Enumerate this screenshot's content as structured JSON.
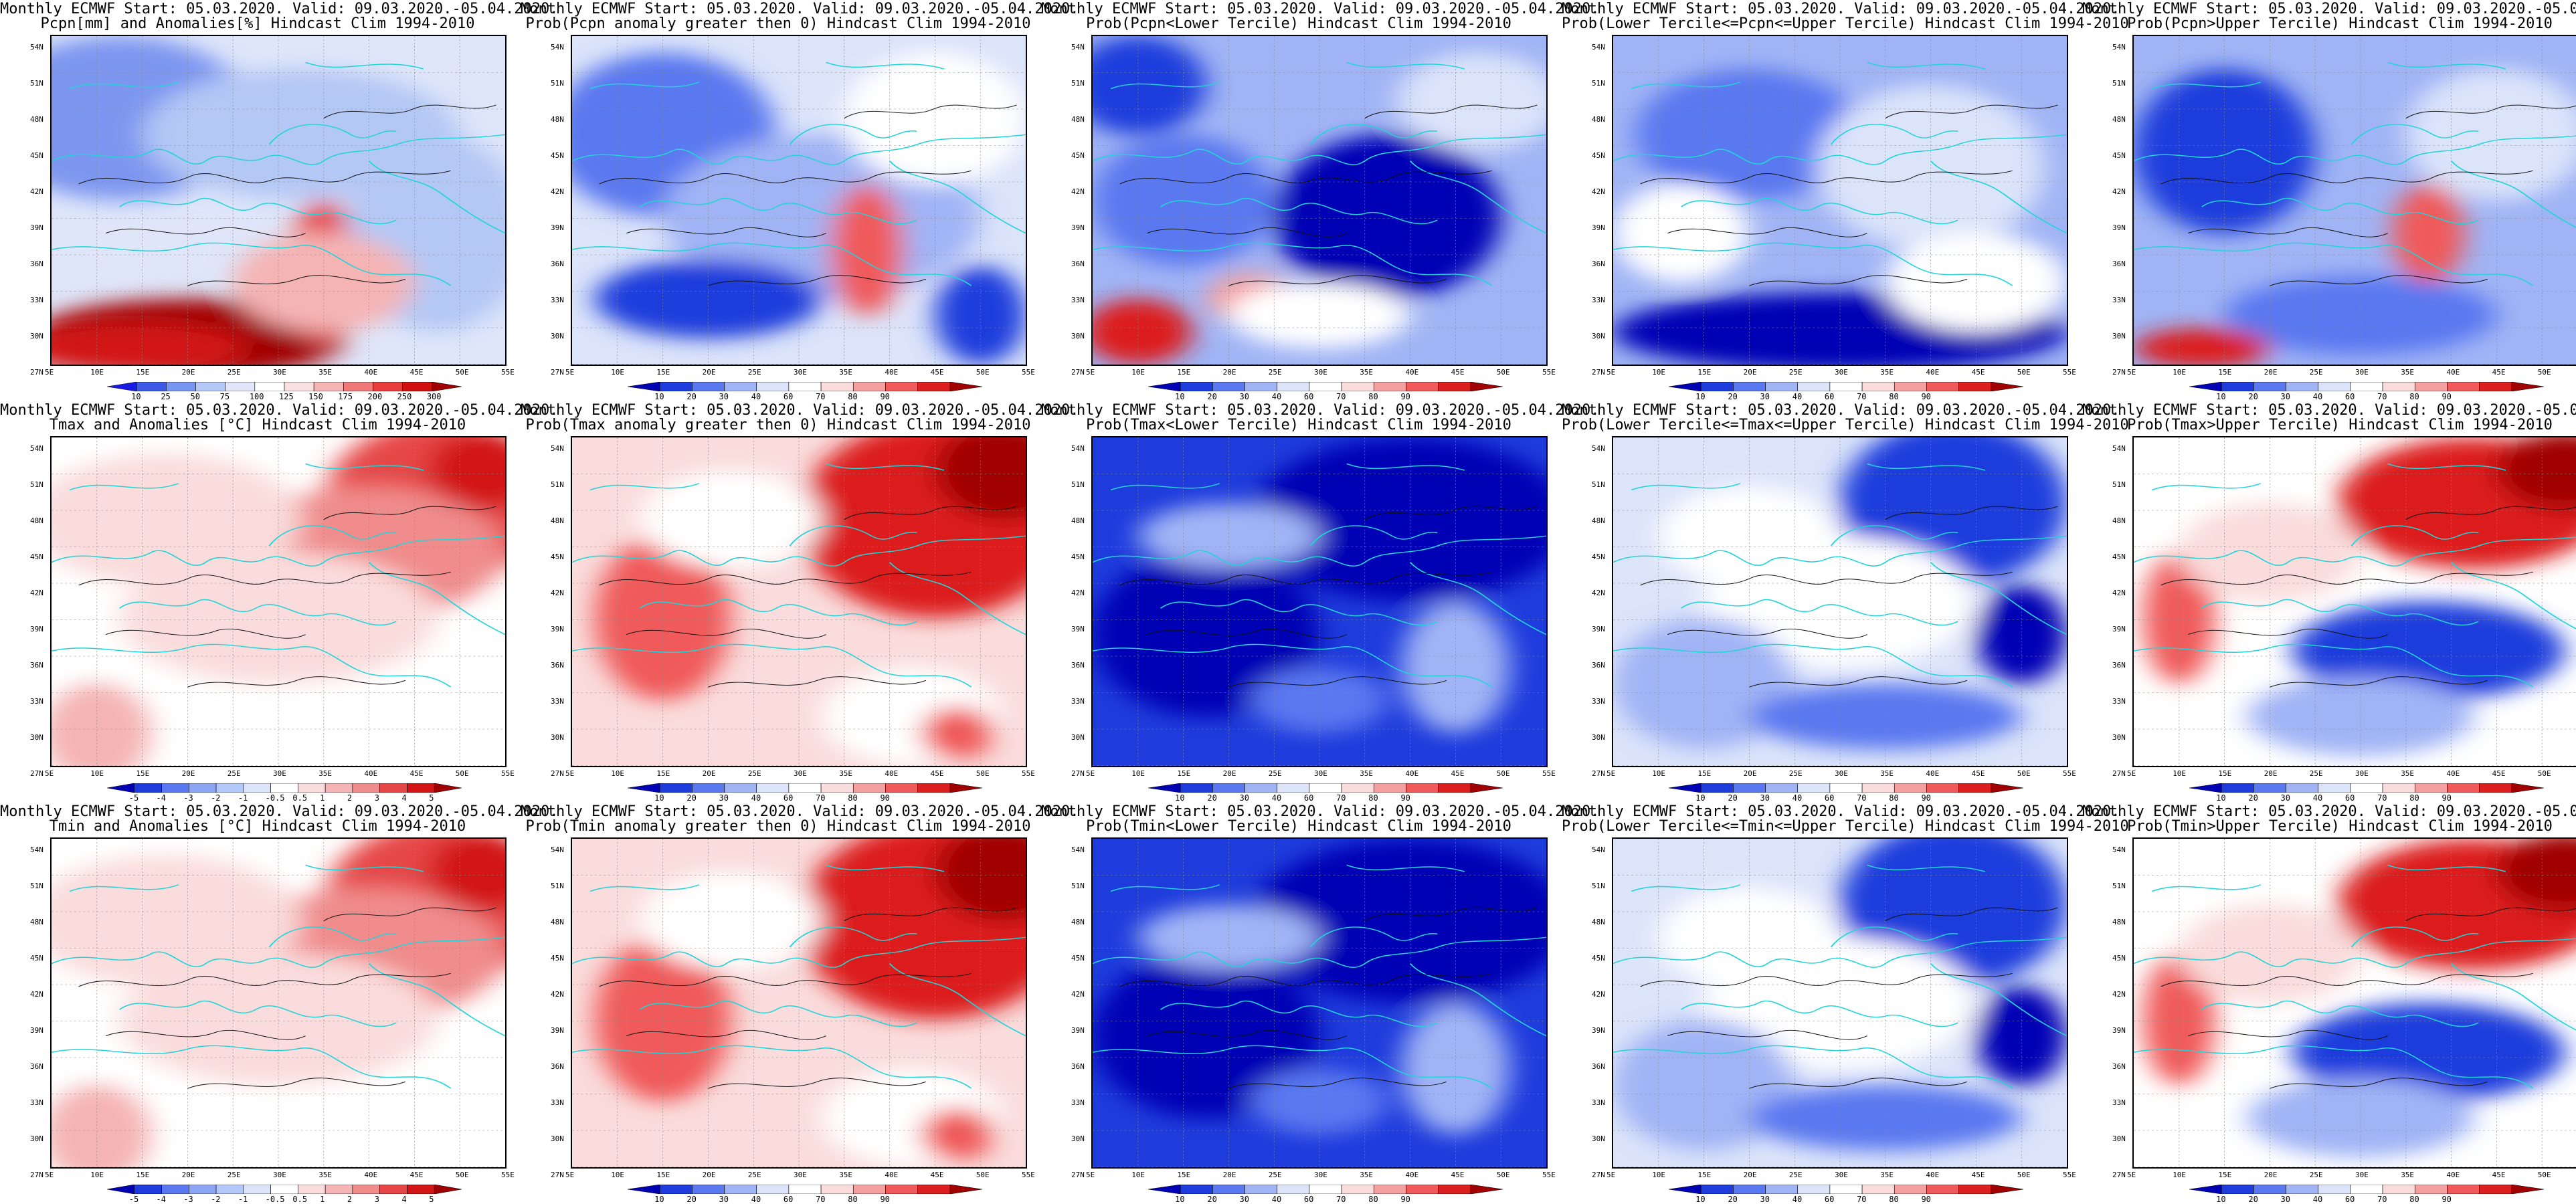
{
  "common": {
    "title_line1": "Monthly ECMWF Start: 05.03.2020. Valid: 09.03.2020.-05.04.2020.",
    "lat_labels": [
      "54N",
      "51N",
      "48N",
      "45N",
      "42N",
      "39N",
      "36N",
      "33N",
      "30N",
      "27N"
    ],
    "lon_labels": [
      "5E",
      "10E",
      "15E",
      "20E",
      "25E",
      "30E",
      "35E",
      "40E",
      "45E",
      "50E",
      "55E"
    ]
  },
  "colorbars": {
    "precip": {
      "labels": [
        "10",
        "25",
        "50",
        "75",
        "100",
        "125",
        "150",
        "175",
        "200",
        "250",
        "300"
      ],
      "colors": [
        "#1a1ae6",
        "#3c5ae6",
        "#7896f0",
        "#b4c8f5",
        "#e1e6fa",
        "#ffffff",
        "#fae1e1",
        "#f5b4b4",
        "#f07878",
        "#e63c3c",
        "#d20f0f",
        "#a00000"
      ]
    },
    "prob": {
      "labels": [
        "10",
        "20",
        "30",
        "40",
        "60",
        "70",
        "80",
        "90"
      ],
      "colors": [
        "#0000b4",
        "#1e3cdc",
        "#5a78f0",
        "#a0b4f5",
        "#dce4fa",
        "#ffffff",
        "#fadcdc",
        "#f5a0a0",
        "#f05a5a",
        "#dc1e1e",
        "#a00000"
      ]
    },
    "temp": {
      "labels": [
        "-5",
        "-4",
        "-3",
        "-2",
        "-1",
        "-0.5",
        "0.5",
        "1",
        "2",
        "3",
        "4",
        "5"
      ],
      "colors": [
        "#0000b4",
        "#1e3cdc",
        "#5a78f0",
        "#8ca5f5",
        "#b4c8fa",
        "#dce4fa",
        "#ffffff",
        "#fadcdc",
        "#f5b4b4",
        "#f08c8c",
        "#e64646",
        "#d21414",
        "#a00000"
      ]
    }
  },
  "panels": [
    {
      "title2": "Pcpn[mm] and Anomalies[%] Hindcast Clim 1994-2010",
      "cb": "precip",
      "theme": "precip"
    },
    {
      "title2": "Prob(Pcpn anomaly greater then 0) Hindcast Clim 1994-2010",
      "cb": "prob",
      "theme": "p_pos"
    },
    {
      "title2": "Prob(Pcpn<Lower Tercile) Hindcast Clim 1994-2010",
      "cb": "prob",
      "theme": "p_lower"
    },
    {
      "title2": "Prob(Lower Tercile<=Pcpn<=Upper Tercile) Hindcast Clim 1994-2010",
      "cb": "prob",
      "theme": "p_mid"
    },
    {
      "title2": "Prob(Pcpn>Upper Tercile) Hindcast Clim 1994-2010",
      "cb": "prob",
      "theme": "p_upper"
    },
    {
      "title2": "Tmax and Anomalies [°C] Hindcast Clim 1994-2010",
      "cb": "temp",
      "theme": "t_warm"
    },
    {
      "title2": "Prob(Tmax anomaly greater then 0) Hindcast Clim 1994-2010",
      "cb": "prob",
      "theme": "t_hot"
    },
    {
      "title2": "Prob(Tmax<Lower Tercile) Hindcast Clim 1994-2010",
      "cb": "prob",
      "theme": "t_cold"
    },
    {
      "title2": "Prob(Lower Tercile<=Tmax<=Upper Tercile) Hindcast Clim 1994-2010",
      "cb": "prob",
      "theme": "t_mid"
    },
    {
      "title2": "Prob(Tmax>Upper Tercile) Hindcast Clim 1994-2010",
      "cb": "prob",
      "theme": "t_up"
    },
    {
      "title2": "Tmin and Anomalies [°C] Hindcast Clim 1994-2010",
      "cb": "temp",
      "theme": "t_warm"
    },
    {
      "title2": "Prob(Tmin anomaly greater then 0) Hindcast Clim 1994-2010",
      "cb": "prob",
      "theme": "t_hot"
    },
    {
      "title2": "Prob(Tmin<Lower Tercile) Hindcast Clim 1994-2010",
      "cb": "prob",
      "theme": "t_cold"
    },
    {
      "title2": "Prob(Lower Tercile<=Tmin<=Upper Tercile) Hindcast Clim 1994-2010",
      "cb": "prob",
      "theme": "t_mid"
    },
    {
      "title2": "Prob(Tmin>Upper Tercile) Hindcast Clim 1994-2010",
      "cb": "prob",
      "theme": "t_up"
    }
  ]
}
